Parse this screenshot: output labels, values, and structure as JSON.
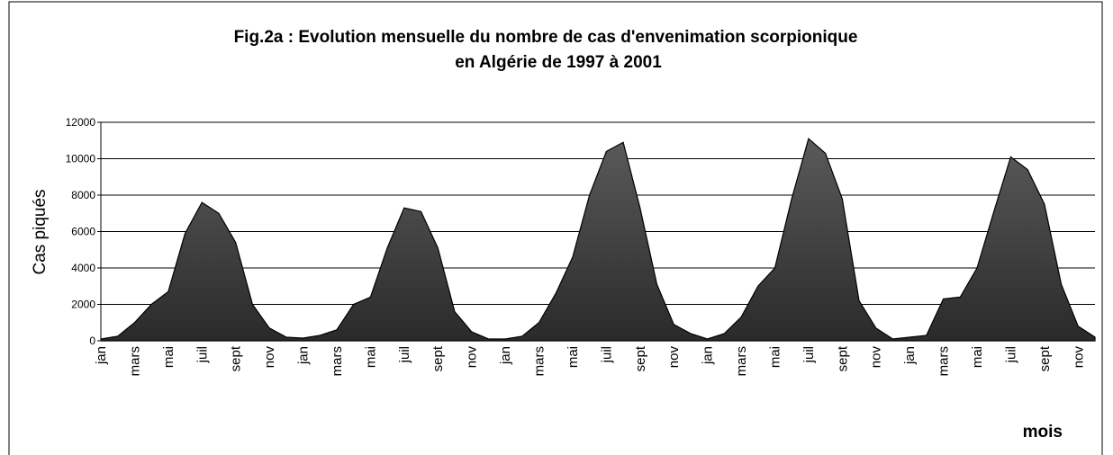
{
  "chart_data": {
    "type": "area",
    "title": [
      "Fig.2a : Evolution mensuelle du nombre de cas d'envenimation scorpionique",
      "en Algérie de 1997 à 2001"
    ],
    "ylabel": "Cas piqués",
    "xlabel": "mois",
    "categories": [
      "jan",
      null,
      "mars",
      null,
      "mai",
      null,
      "juil",
      null,
      "sept",
      null,
      "nov",
      null,
      "jan",
      null,
      "mars",
      null,
      "mai",
      null,
      "juil",
      null,
      "sept",
      null,
      "nov",
      null,
      "jan",
      null,
      "mars",
      null,
      "mai",
      null,
      "juil",
      null,
      "sept",
      null,
      "nov",
      null,
      "jan",
      null,
      "mars",
      null,
      "mai",
      null,
      "juil",
      null,
      "sept",
      null,
      "nov",
      null,
      "jan",
      null,
      "mars",
      null,
      "mai",
      null,
      "juil",
      null,
      "sept",
      null,
      "nov",
      null
    ],
    "values": [
      100,
      250,
      1000,
      2000,
      2700,
      5900,
      7600,
      7000,
      5400,
      2000,
      700,
      200,
      150,
      300,
      600,
      2000,
      2400,
      5100,
      7300,
      7100,
      5100,
      1600,
      500,
      100,
      100,
      250,
      1000,
      2600,
      4600,
      8000,
      10400,
      10900,
      7300,
      3100,
      900,
      400,
      100,
      400,
      1300,
      3000,
      4000,
      7800,
      11100,
      10300,
      7800,
      2200,
      700,
      100,
      200,
      300,
      2300,
      2400,
      4000,
      7100,
      10100,
      9400,
      7500,
      3100,
      800,
      200
    ],
    "color": "#2a2a2a",
    "ylim": [
      0,
      12000
    ],
    "yticks": [
      0,
      2000,
      4000,
      6000,
      8000,
      10000,
      12000
    ],
    "grid": true
  }
}
